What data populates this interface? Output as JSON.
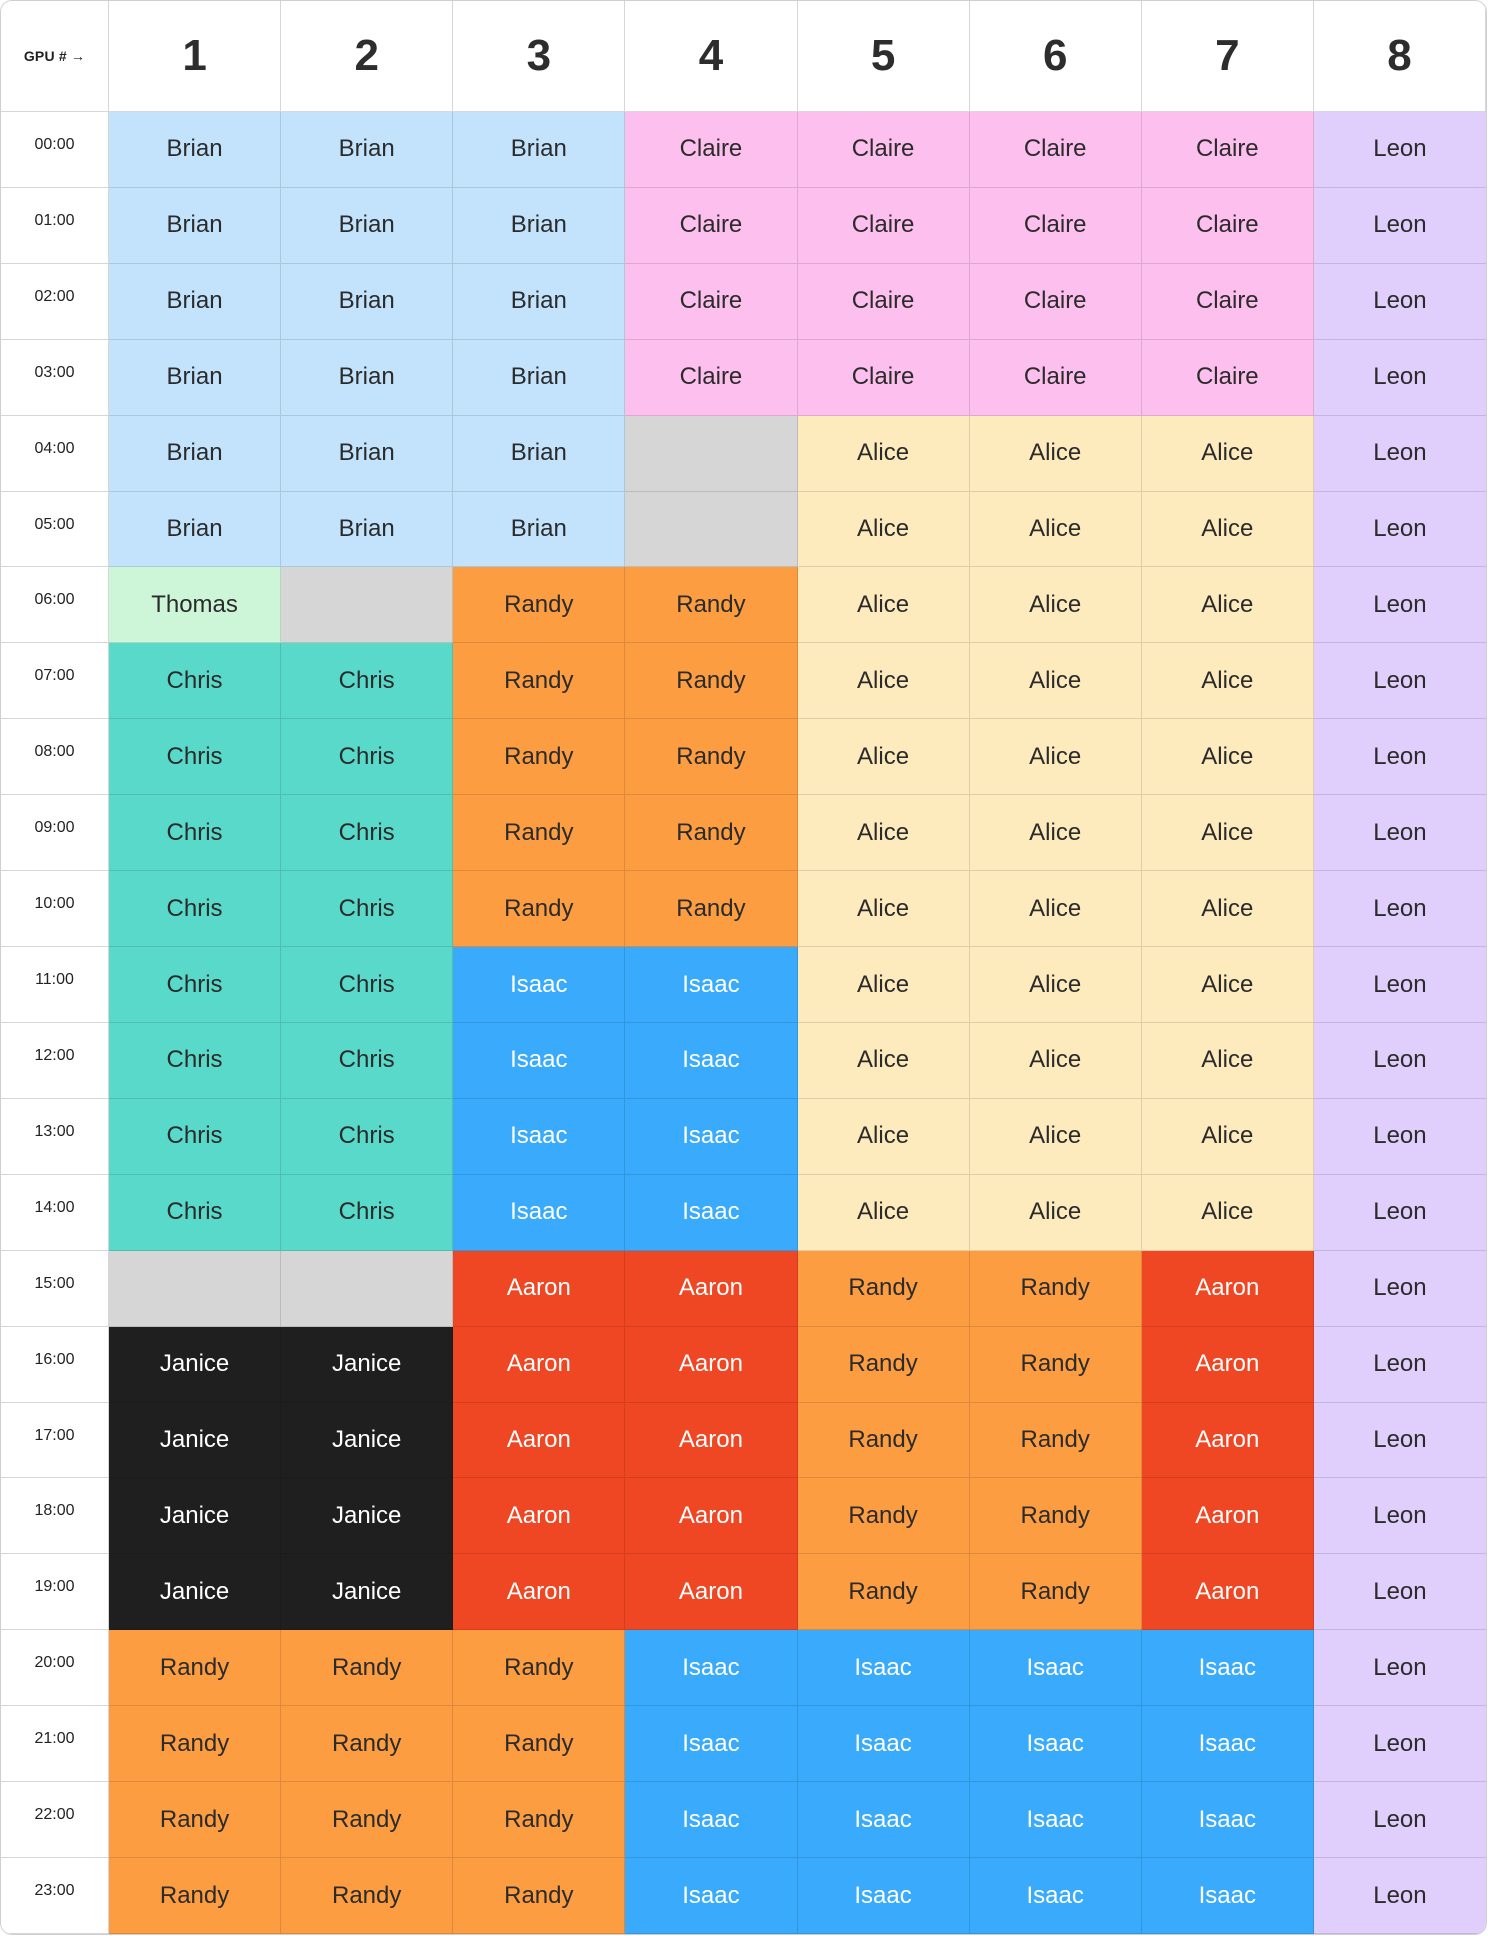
{
  "header": {
    "corner_label": "GPU # →",
    "gpus": [
      "1",
      "2",
      "3",
      "4",
      "5",
      "6",
      "7",
      "8"
    ]
  },
  "users": {
    "Brian": {
      "bg": "#c2e3fb",
      "fg": "#2b2b2b"
    },
    "Claire": {
      "bg": "#fcbfee",
      "fg": "#2b2b2b"
    },
    "Leon": {
      "bg": "#e0cffc",
      "fg": "#2b2b2b"
    },
    "Alice": {
      "bg": "#fdeabd",
      "fg": "#2b2b2b"
    },
    "Thomas": {
      "bg": "#cdf5d7",
      "fg": "#2b2b2b"
    },
    "Randy": {
      "bg": "#fd9d42",
      "fg": "#2b2b2b"
    },
    "Chris": {
      "bg": "#59d9c9",
      "fg": "#2b2b2b"
    },
    "Isaac": {
      "bg": "#3aabfc",
      "fg": "#ffffff"
    },
    "Aaron": {
      "bg": "#ef4723",
      "fg": "#ffffff"
    },
    "Janice": {
      "bg": "#1f1f1f",
      "fg": "#ffffff"
    },
    "": {
      "bg": "#d6d6d6",
      "fg": "#2b2b2b"
    }
  },
  "rows": [
    {
      "time": "00:00",
      "cells": [
        "Brian",
        "Brian",
        "Brian",
        "Claire",
        "Claire",
        "Claire",
        "Claire",
        "Leon"
      ]
    },
    {
      "time": "01:00",
      "cells": [
        "Brian",
        "Brian",
        "Brian",
        "Claire",
        "Claire",
        "Claire",
        "Claire",
        "Leon"
      ]
    },
    {
      "time": "02:00",
      "cells": [
        "Brian",
        "Brian",
        "Brian",
        "Claire",
        "Claire",
        "Claire",
        "Claire",
        "Leon"
      ]
    },
    {
      "time": "03:00",
      "cells": [
        "Brian",
        "Brian",
        "Brian",
        "Claire",
        "Claire",
        "Claire",
        "Claire",
        "Leon"
      ]
    },
    {
      "time": "04:00",
      "cells": [
        "Brian",
        "Brian",
        "Brian",
        "",
        "Alice",
        "Alice",
        "Alice",
        "Leon"
      ]
    },
    {
      "time": "05:00",
      "cells": [
        "Brian",
        "Brian",
        "Brian",
        "",
        "Alice",
        "Alice",
        "Alice",
        "Leon"
      ]
    },
    {
      "time": "06:00",
      "cells": [
        "Thomas",
        "",
        "Randy",
        "Randy",
        "Alice",
        "Alice",
        "Alice",
        "Leon"
      ]
    },
    {
      "time": "07:00",
      "cells": [
        "Chris",
        "Chris",
        "Randy",
        "Randy",
        "Alice",
        "Alice",
        "Alice",
        "Leon"
      ]
    },
    {
      "time": "08:00",
      "cells": [
        "Chris",
        "Chris",
        "Randy",
        "Randy",
        "Alice",
        "Alice",
        "Alice",
        "Leon"
      ]
    },
    {
      "time": "09:00",
      "cells": [
        "Chris",
        "Chris",
        "Randy",
        "Randy",
        "Alice",
        "Alice",
        "Alice",
        "Leon"
      ]
    },
    {
      "time": "10:00",
      "cells": [
        "Chris",
        "Chris",
        "Randy",
        "Randy",
        "Alice",
        "Alice",
        "Alice",
        "Leon"
      ]
    },
    {
      "time": "11:00",
      "cells": [
        "Chris",
        "Chris",
        "Isaac",
        "Isaac",
        "Alice",
        "Alice",
        "Alice",
        "Leon"
      ]
    },
    {
      "time": "12:00",
      "cells": [
        "Chris",
        "Chris",
        "Isaac",
        "Isaac",
        "Alice",
        "Alice",
        "Alice",
        "Leon"
      ]
    },
    {
      "time": "13:00",
      "cells": [
        "Chris",
        "Chris",
        "Isaac",
        "Isaac",
        "Alice",
        "Alice",
        "Alice",
        "Leon"
      ]
    },
    {
      "time": "14:00",
      "cells": [
        "Chris",
        "Chris",
        "Isaac",
        "Isaac",
        "Alice",
        "Alice",
        "Alice",
        "Leon"
      ]
    },
    {
      "time": "15:00",
      "cells": [
        "",
        "",
        "Aaron",
        "Aaron",
        "Randy",
        "Randy",
        "Aaron",
        "Leon"
      ]
    },
    {
      "time": "16:00",
      "cells": [
        "Janice",
        "Janice",
        "Aaron",
        "Aaron",
        "Randy",
        "Randy",
        "Aaron",
        "Leon"
      ]
    },
    {
      "time": "17:00",
      "cells": [
        "Janice",
        "Janice",
        "Aaron",
        "Aaron",
        "Randy",
        "Randy",
        "Aaron",
        "Leon"
      ]
    },
    {
      "time": "18:00",
      "cells": [
        "Janice",
        "Janice",
        "Aaron",
        "Aaron",
        "Randy",
        "Randy",
        "Aaron",
        "Leon"
      ]
    },
    {
      "time": "19:00",
      "cells": [
        "Janice",
        "Janice",
        "Aaron",
        "Aaron",
        "Randy",
        "Randy",
        "Aaron",
        "Leon"
      ]
    },
    {
      "time": "20:00",
      "cells": [
        "Randy",
        "Randy",
        "Randy",
        "Isaac",
        "Isaac",
        "Isaac",
        "Isaac",
        "Leon"
      ]
    },
    {
      "time": "21:00",
      "cells": [
        "Randy",
        "Randy",
        "Randy",
        "Isaac",
        "Isaac",
        "Isaac",
        "Isaac",
        "Leon"
      ]
    },
    {
      "time": "22:00",
      "cells": [
        "Randy",
        "Randy",
        "Randy",
        "Isaac",
        "Isaac",
        "Isaac",
        "Isaac",
        "Leon"
      ]
    },
    {
      "time": "23:00",
      "cells": [
        "Randy",
        "Randy",
        "Randy",
        "Isaac",
        "Isaac",
        "Isaac",
        "Isaac",
        "Leon"
      ]
    }
  ]
}
